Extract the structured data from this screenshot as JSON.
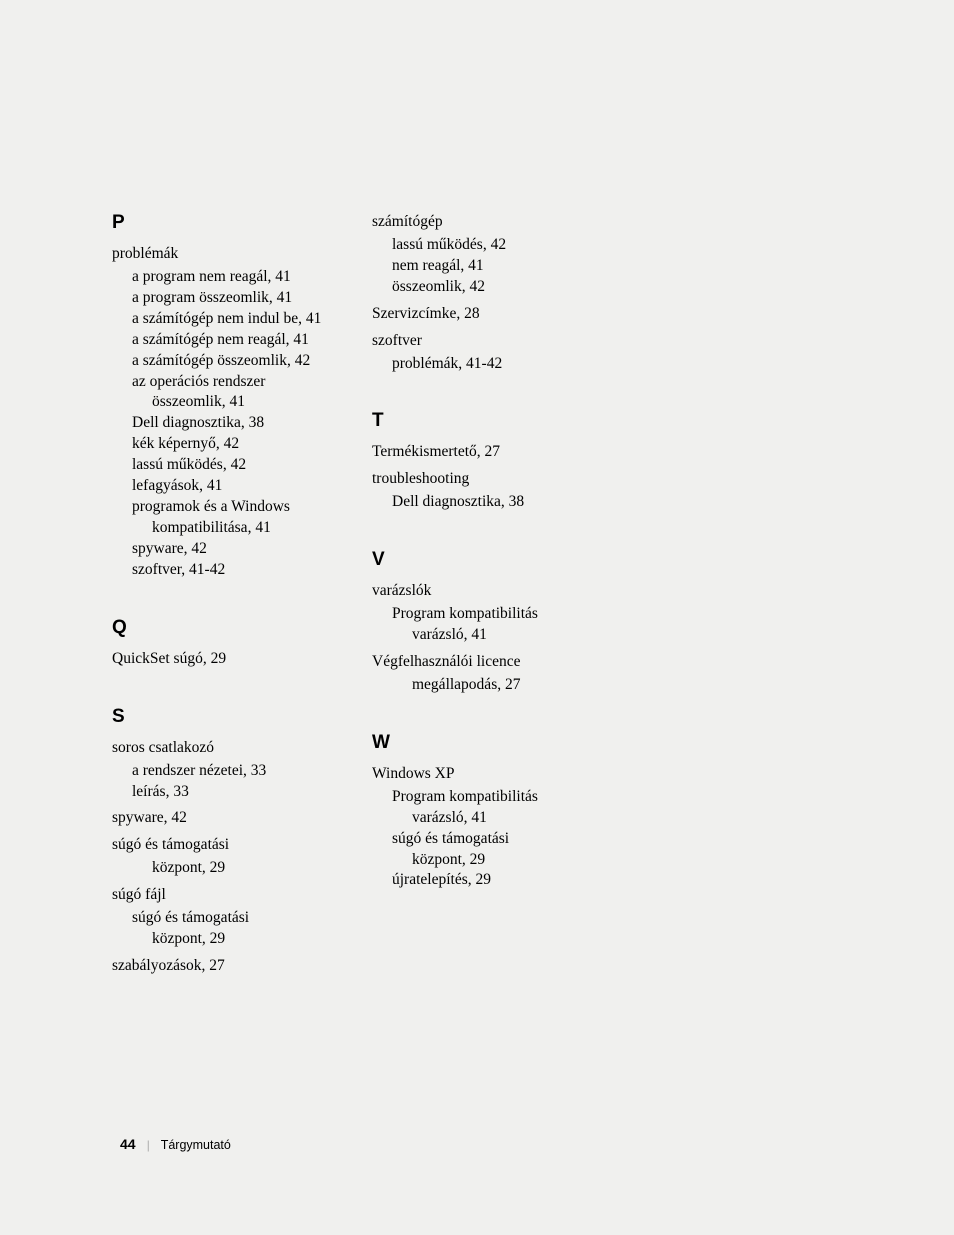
{
  "footer": {
    "page": "44",
    "separator": "|",
    "label": "Tárgymutató"
  },
  "col1": {
    "sections": [
      {
        "letter": "P",
        "entries": [
          {
            "term": "problémák",
            "subs": [
              "a program nem reagál, 41",
              "a program összeomlik, 41",
              "a számítógép nem indul be, 41",
              "a számítógép nem reagál, 41",
              "a számítógép összeomlik, 42",
              "az operációs rendszer",
              "___összeomlik, 41",
              "Dell diagnosztika, 38",
              "kék képernyő, 42",
              "lassú működés, 42",
              "lefagyások, 41",
              "programok és a Windows",
              "___kompatibilitása, 41",
              "spyware, 42",
              "szoftver, 41-42"
            ]
          }
        ]
      },
      {
        "letter": "Q",
        "entries": [
          {
            "line": "QuickSet súgó, 29"
          }
        ]
      },
      {
        "letter": "S",
        "entries": [
          {
            "term": "soros csatlakozó",
            "subs": [
              "a rendszer nézetei, 33",
              "leírás, 33"
            ]
          },
          {
            "line": "spyware, 42"
          },
          {
            "term": "súgó és támogatási",
            "subs": [
              "___központ, 29"
            ],
            "tight": true
          },
          {
            "term": "súgó fájl",
            "subs": [
              "súgó és támogatási",
              "___központ, 29"
            ]
          },
          {
            "line": "szabályozások, 27"
          }
        ]
      }
    ]
  },
  "col2": {
    "sections": [
      {
        "letter": "",
        "entries": [
          {
            "term": "számítógép",
            "subs": [
              "lassú működés, 42",
              "nem reagál, 41",
              "összeomlik, 42"
            ]
          },
          {
            "line": "Szervizcímke, 28"
          },
          {
            "term": "szoftver",
            "subs": [
              "problémák, 41-42"
            ]
          }
        ]
      },
      {
        "letter": "T",
        "entries": [
          {
            "line": "Termékismertető, 27"
          },
          {
            "term": "troubleshooting",
            "subs": [
              "Dell diagnosztika, 38"
            ]
          }
        ]
      },
      {
        "letter": "V",
        "entries": [
          {
            "term": "varázslók",
            "subs": [
              "Program kompatibilitás",
              "___varázsló, 41"
            ]
          },
          {
            "term": "Végfelhasználói licence",
            "subs": [
              "___megállapodás, 27"
            ],
            "tight": true
          }
        ]
      },
      {
        "letter": "W",
        "entries": [
          {
            "term": "Windows XP",
            "subs": [
              "Program kompatibilitás",
              "___varázsló, 41",
              "súgó és támogatási",
              "___központ, 29",
              "újratelepítés, 29"
            ]
          }
        ]
      }
    ]
  }
}
